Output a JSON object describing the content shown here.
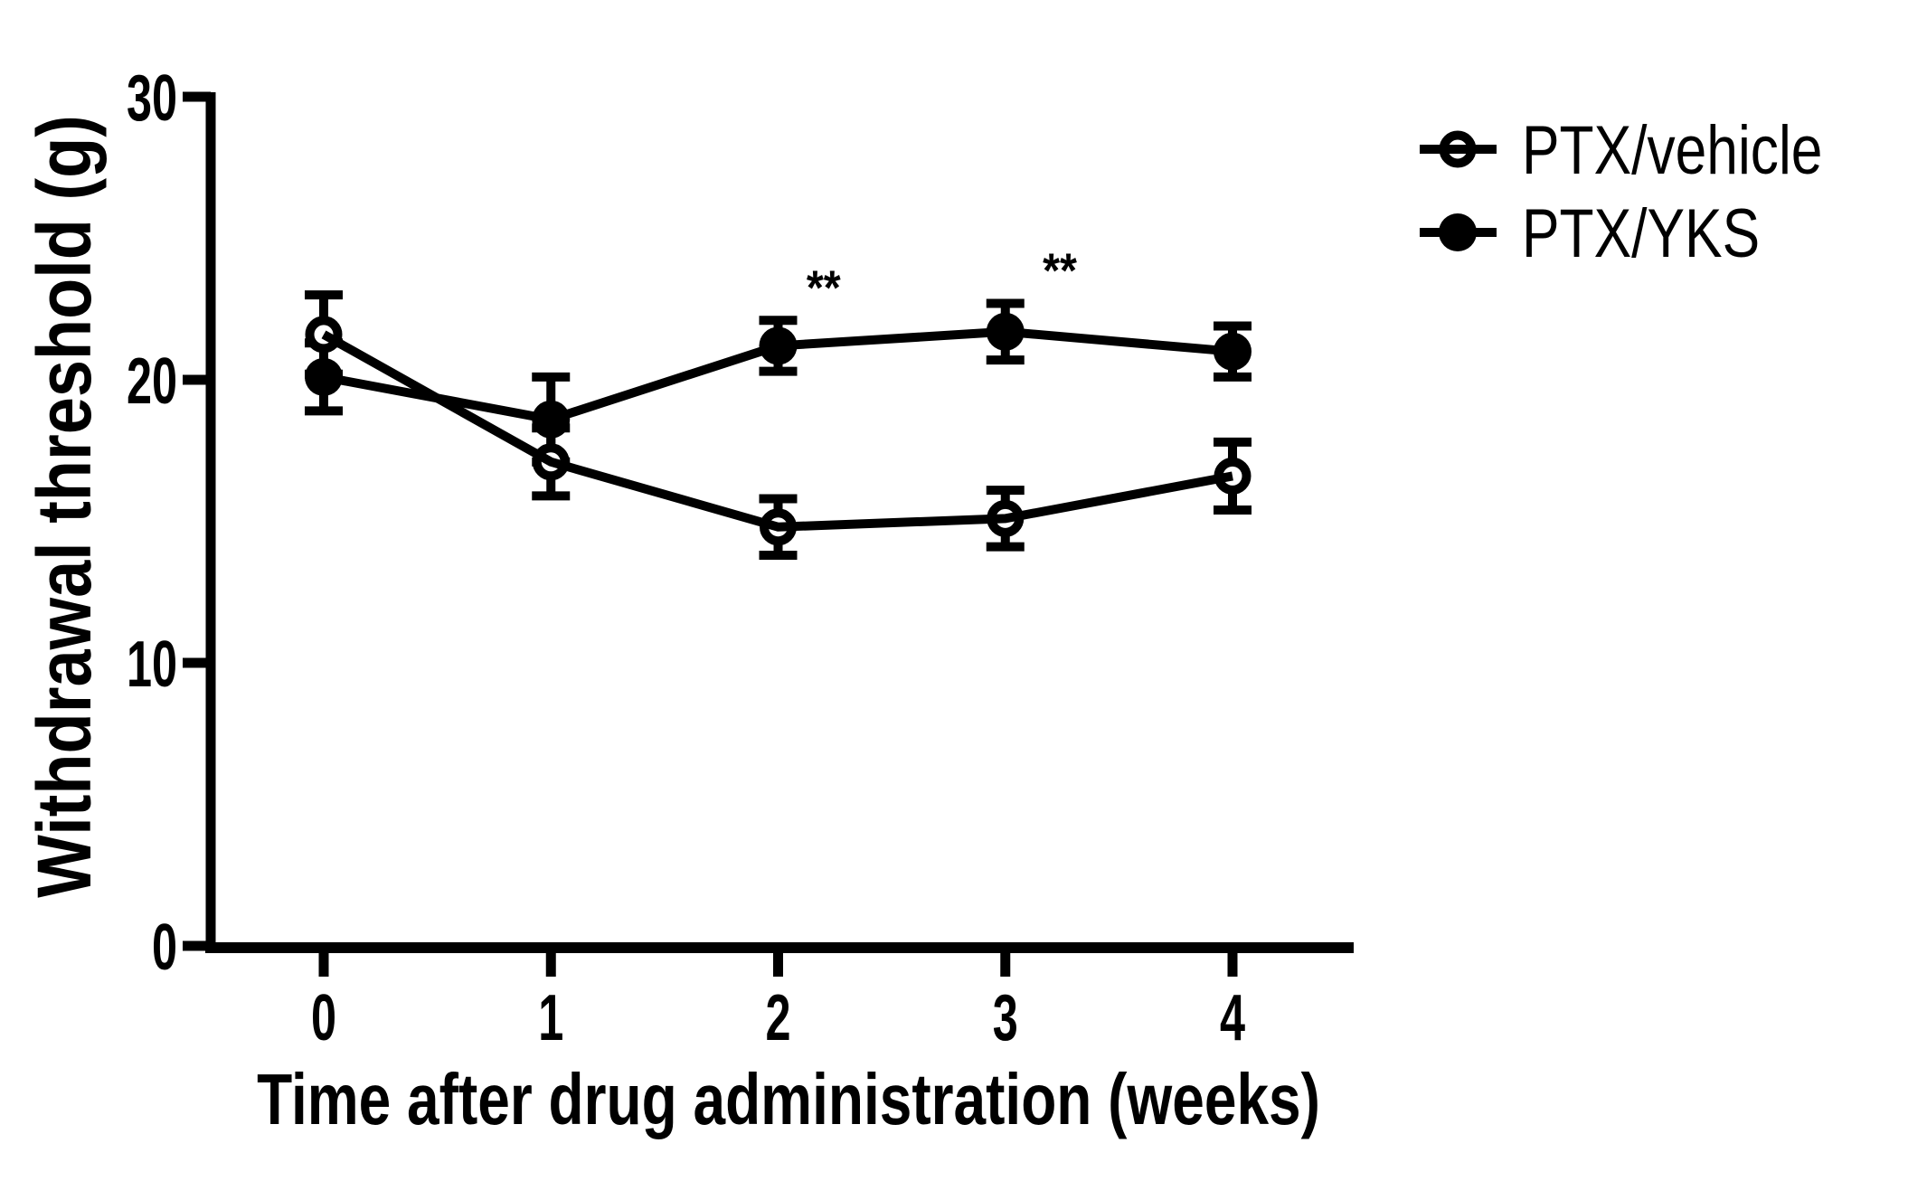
{
  "figure": {
    "background": "#ffffff",
    "ink_color": "#000000"
  },
  "chart_data": {
    "type": "line",
    "title": "",
    "xlabel": "Time after drug administration (weeks)",
    "ylabel": "Withdrawal threshold (g)",
    "x": [
      0,
      1,
      2,
      3,
      4
    ],
    "xticks": [
      "0",
      "1",
      "2",
      "3",
      "4"
    ],
    "ytick_values": [
      0,
      10,
      20,
      30
    ],
    "yticks": [
      "0",
      "10",
      "20",
      "30"
    ],
    "xlim": [
      -0.5,
      4.53
    ],
    "ylim": [
      0,
      30
    ],
    "grid": false,
    "legend_position": "top-right",
    "error_bar_type": "sem",
    "series": [
      {
        "name": "PTX/vehicle",
        "marker": "open-circle",
        "color": "#000000",
        "values": [
          21.6,
          17.1,
          14.8,
          15.1,
          16.6
        ],
        "sem": [
          1.4,
          1.2,
          1.0,
          1.0,
          1.2
        ]
      },
      {
        "name": "PTX/YKS",
        "marker": "filled-circle",
        "color": "#000000",
        "values": [
          20.1,
          18.6,
          21.2,
          21.7,
          21.0
        ],
        "sem": [
          1.2,
          1.5,
          0.9,
          1.0,
          0.9
        ]
      }
    ],
    "annotations": [
      {
        "text": "**",
        "x": 2.2,
        "y": 23.6
      },
      {
        "text": "**",
        "x": 3.24,
        "y": 24.2
      }
    ]
  }
}
